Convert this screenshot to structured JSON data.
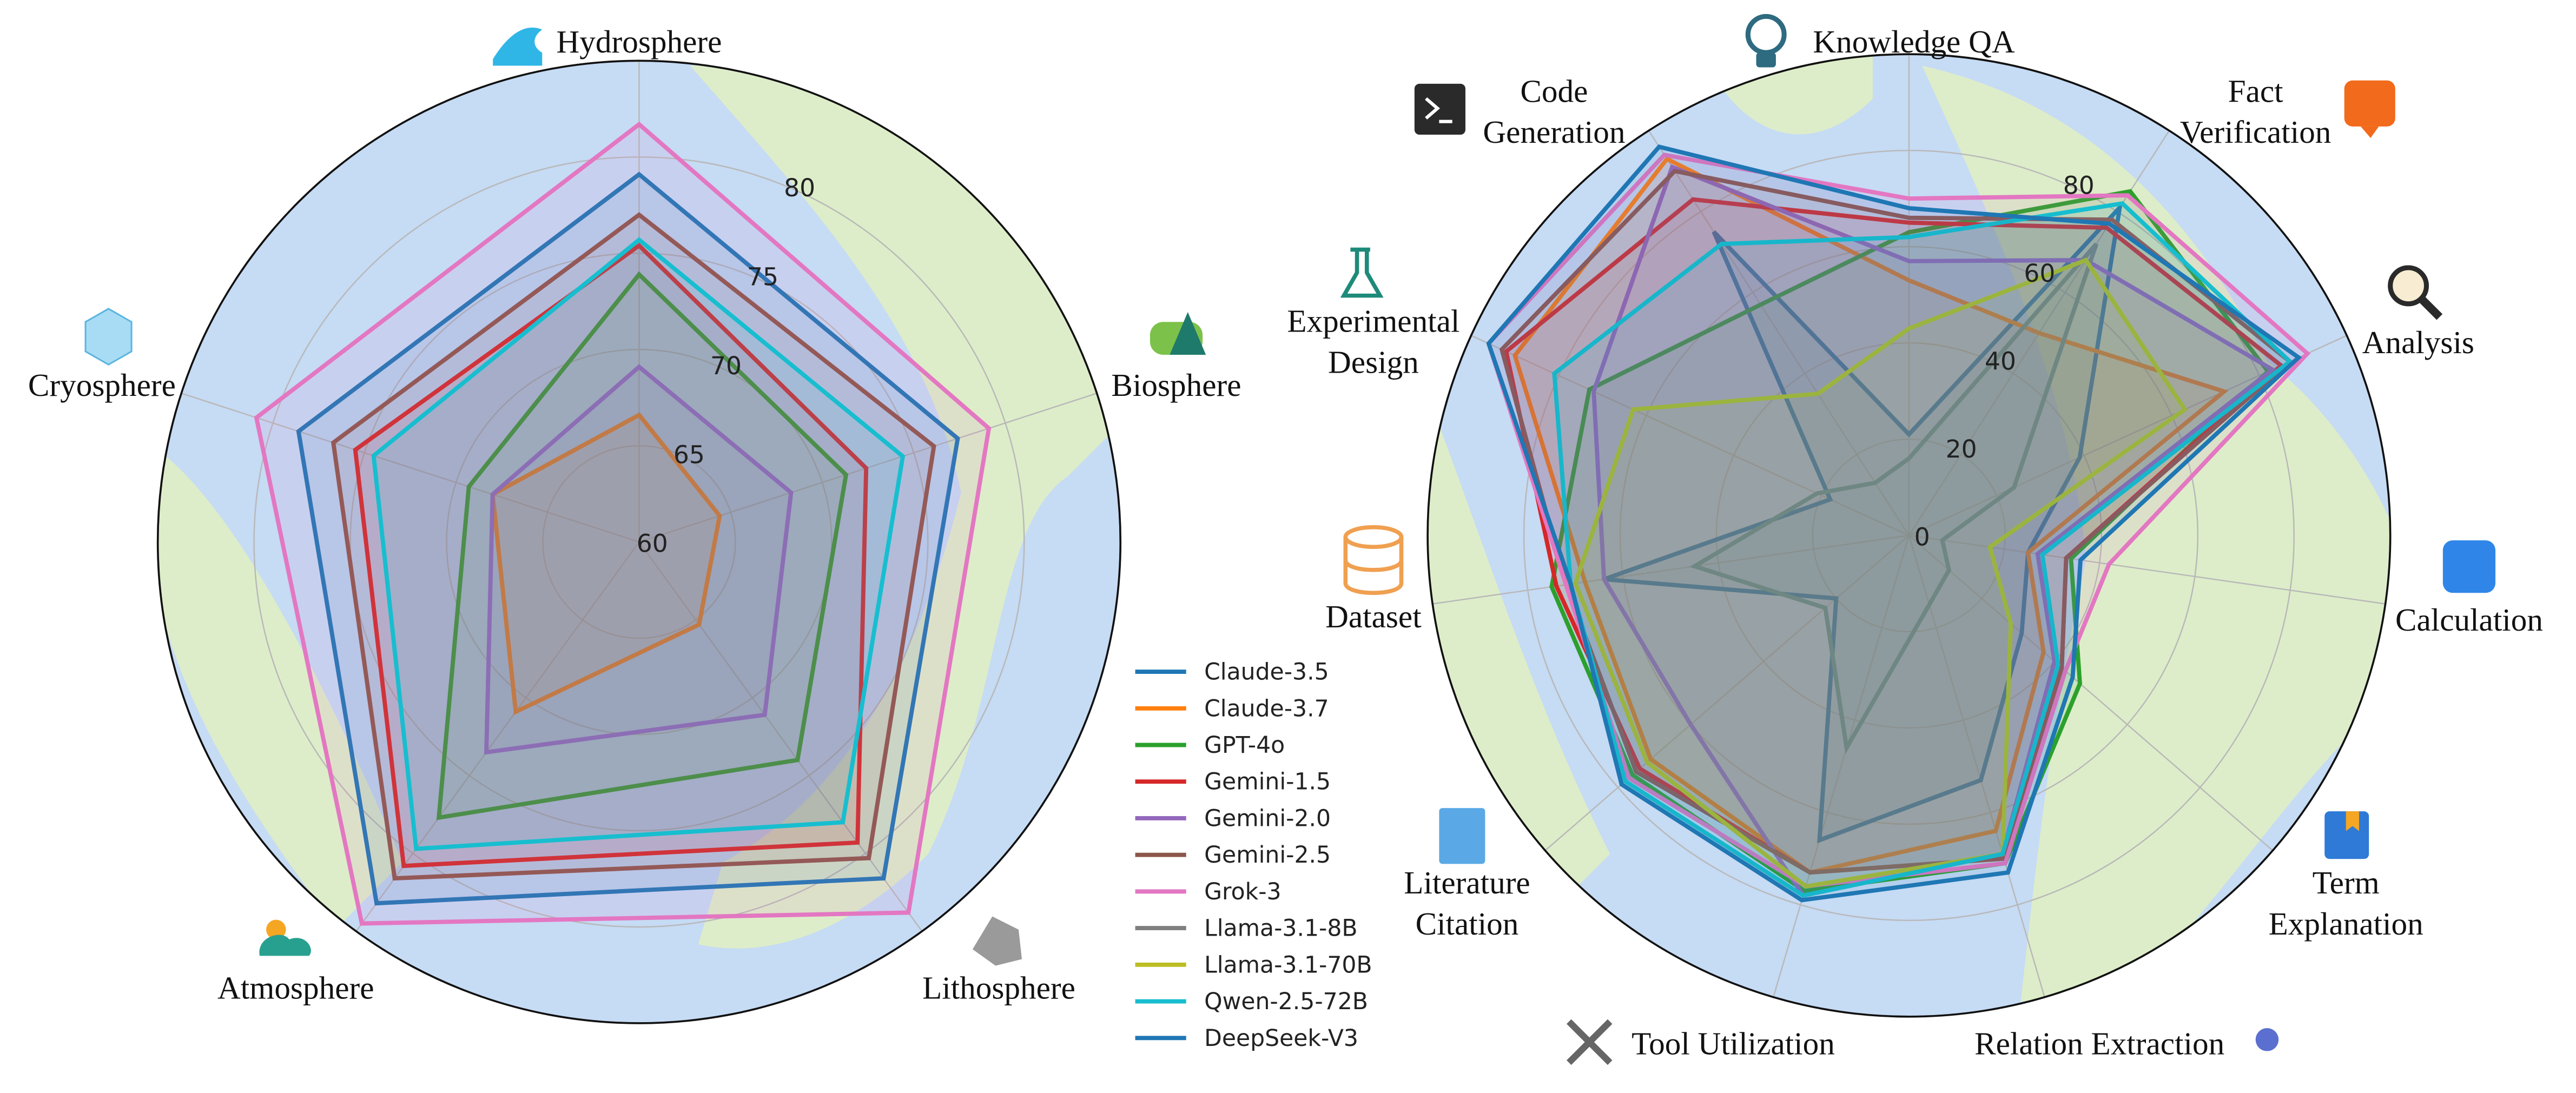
{
  "chart_data": [
    {
      "type": "radar",
      "categories": [
        "Hydrosphere",
        "Biosphere",
        "Lithosphere",
        "Atmosphere",
        "Cryosphere"
      ],
      "ylim": [
        60,
        85
      ],
      "yticks": [
        60,
        65,
        70,
        75,
        80
      ],
      "grid": true,
      "series": [
        {
          "name": "Claude-3.5",
          "color": "#1f77b4",
          "values": [
            79.1,
            77.4,
            81.6,
            83.2,
            78.6
          ]
        },
        {
          "name": "Claude-3.7",
          "color": "#ff7f0e",
          "values": [
            66.6,
            64.4,
            65.3,
            70.9,
            68.0
          ]
        },
        {
          "name": "GPT-4o",
          "color": "#2ca02c",
          "values": [
            73.9,
            71.3,
            74.0,
            77.7,
            69.3
          ]
        },
        {
          "name": "Gemini-1.5",
          "color": "#d62728",
          "values": [
            75.4,
            72.4,
            79.3,
            80.8,
            75.5
          ]
        },
        {
          "name": "Gemini-2.0",
          "color": "#9467bd",
          "values": [
            69.1,
            68.3,
            71.1,
            73.5,
            68.0
          ]
        },
        {
          "name": "Gemini-2.5",
          "color": "#8c564b",
          "values": [
            77.0,
            76.1,
            80.3,
            81.6,
            76.7
          ]
        },
        {
          "name": "Grok-3",
          "color": "#e377c2",
          "values": [
            81.7,
            79.1,
            83.8,
            84.5,
            80.9
          ]
        },
        {
          "name": "Llama-3.1-8B",
          "color": "#7f7f7f",
          "values": [
            null,
            null,
            null,
            null,
            null
          ]
        },
        {
          "name": "Llama-3.1-70B",
          "color": "#bcbd22",
          "values": [
            null,
            null,
            null,
            null,
            null
          ]
        },
        {
          "name": "Qwen-2.5-72B",
          "color": "#17becf",
          "values": [
            75.7,
            74.4,
            78.0,
            79.7,
            74.5
          ]
        },
        {
          "name": "DeepSeek-V3",
          "color": "#1f77b4",
          "values": [
            null,
            null,
            null,
            null,
            null
          ]
        }
      ]
    },
    {
      "type": "radar",
      "categories": [
        "Knowledge QA",
        "Fact Verification",
        "Analysis",
        "Calculation",
        "Term Explanation",
        "Relation Extraction",
        "Tool Utilization",
        "Literature Citation",
        "Dataset",
        "Experimental Design",
        "Code Generation"
      ],
      "ylim": [
        0,
        100
      ],
      "yticks": [
        0,
        20,
        40,
        60,
        80
      ],
      "grid": true,
      "series": [
        {
          "color": "#1f77b4",
          "values": [
            21,
            81,
            39,
            25,
            31,
            53,
            66,
            20,
            64,
            18,
            75
          ]
        },
        {
          "color": "#ff7f0e",
          "values": [
            53,
            50,
            72,
            25,
            37,
            64,
            73,
            71,
            68,
            90,
            93
          ]
        },
        {
          "color": "#2ca02c",
          "values": [
            63,
            85,
            82,
            34,
            47,
            71,
            77,
            76,
            75,
            73,
            57
          ]
        },
        {
          "color": "#d62728",
          "values": [
            65,
            76,
            85,
            33,
            42,
            70,
            73,
            74,
            74,
            92,
            83
          ]
        },
        {
          "color": "#9467bd",
          "values": [
            57,
            68,
            83,
            27,
            40,
            69,
            78,
            60,
            64,
            72,
            91
          ]
        },
        {
          "color": "#8c564b",
          "values": [
            66,
            78,
            87,
            33,
            42,
            70,
            73,
            75,
            72,
            93,
            90
          ]
        },
        {
          "color": "#e377c2",
          "values": [
            70,
            84,
            91,
            42,
            43,
            71,
            76,
            77,
            72,
            96,
            94
          ]
        },
        {
          "color": "#7f7f7f",
          "values": [
            16,
            72,
            24,
            7,
            11,
            15,
            46,
            23,
            45,
            21,
            13
          ]
        },
        {
          "color": "#bcbd22",
          "values": [
            43,
            68,
            63,
            17,
            28,
            69,
            76,
            72,
            70,
            63,
            35
          ]
        },
        {
          "color": "#17becf",
          "values": [
            62,
            82,
            87,
            28,
            41,
            69,
            78,
            78,
            71,
            81,
            72
          ]
        },
        {
          "color": "#1f77b4",
          "values": [
            68,
            77,
            89,
            36,
            45,
            73,
            79,
            79,
            71,
            96,
            96
          ]
        }
      ]
    }
  ]
}
